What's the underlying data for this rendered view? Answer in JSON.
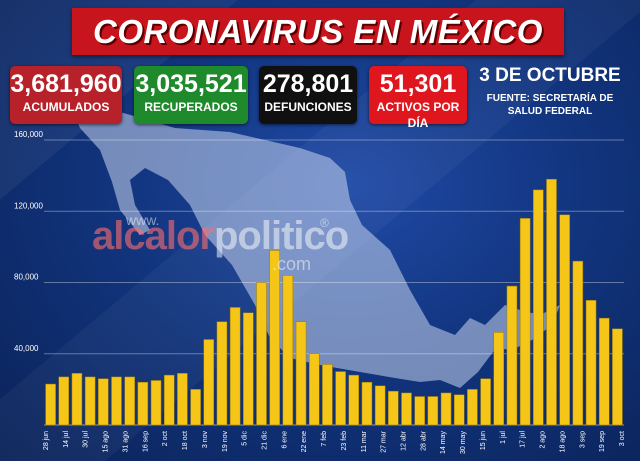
{
  "header": {
    "title": "CORONAVIRUS EN MÉXICO"
  },
  "stats": [
    {
      "value": "3,681,960",
      "label": "ACUMULADOS",
      "color": "#b6212a"
    },
    {
      "value": "3,035,521",
      "label": "RECUPERADOS",
      "color": "#1e8a2b"
    },
    {
      "value": "278,801",
      "label": "DEFUNCIONES",
      "color": "#101010"
    },
    {
      "value": "51,301",
      "label": "ACTIVOS POR DÍA",
      "color": "#e0161e"
    }
  ],
  "date": "3 DE OCTUBRE",
  "source": "FUENTE: SECRETARÍA DE SALUD FEDERAL",
  "watermark": {
    "www": "www.",
    "name_a": "alcalor",
    "name_b": "politico",
    "com": ".com",
    "mark": "®"
  },
  "chart_data": {
    "type": "bar",
    "yticks": [
      "40,000",
      "80,000",
      "120,000",
      "160,000"
    ],
    "ylim": [
      0,
      160000
    ],
    "bar_color": "#f5c518",
    "x_labels": [
      "28 jun",
      "14 jul",
      "30 jul",
      "15 ago",
      "31 ago",
      "16 sep",
      "2 oct",
      "18 oct",
      "3 nov",
      "19 nov",
      "5 dic",
      "21 dic",
      "6 ene",
      "22 ene",
      "7 feb",
      "23 feb",
      "11 mar",
      "27 mar",
      "12 abr",
      "28 abr",
      "14 may",
      "30 may",
      "15 jun",
      "1 jul",
      "17 jul",
      "2 ago",
      "18 ago",
      "3 sep",
      "19 sep",
      "3 oct"
    ],
    "series": [
      {
        "values": [
          23000,
          27000,
          29000,
          27000,
          26000,
          27000,
          27000,
          24000,
          25000,
          28000,
          29000,
          20000,
          48000,
          58000,
          66000,
          63000,
          80000,
          98000,
          84000,
          58000,
          40000,
          34000,
          30000,
          28000,
          24000,
          22000,
          19000,
          18000,
          16000,
          16000,
          18000,
          17000,
          20000,
          26000,
          52000,
          78000,
          116000,
          132000,
          138000,
          118000,
          92000,
          70000,
          60000,
          54000
        ]
      }
    ]
  }
}
